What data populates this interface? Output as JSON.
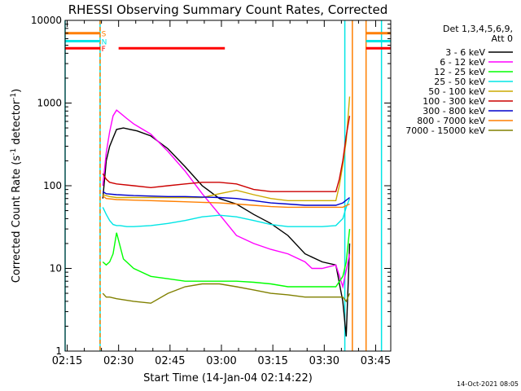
{
  "chart_data": {
    "type": "line",
    "title": "RHESSI Observing Summary Count Rates, Corrected",
    "xlabel": "Start Time (14-Jan-04 02:14:22)",
    "ylabel_main": "Corrected Count Rate (s",
    "ylabel_sup": "-1",
    "ylabel_rest": " detector",
    "ylabel_sup2": "-1",
    "ylabel_end": ")",
    "footer_timestamp": "14-Oct-2021 08:05",
    "legend_header": [
      "Det 1,3,4,5,6,9,",
      "Att 0"
    ],
    "x_unit": "minutes after 02:14:22",
    "xlim": [
      0,
      95
    ],
    "ylim": [
      1,
      10000
    ],
    "yscale": "log",
    "x_ticks": [
      {
        "label": "02:15",
        "x": 0.6
      },
      {
        "label": "02:30",
        "x": 15.6
      },
      {
        "label": "02:45",
        "x": 30.6
      },
      {
        "label": "03:00",
        "x": 45.6
      },
      {
        "label": "03:15",
        "x": 60.6
      },
      {
        "label": "03:30",
        "x": 75.6
      },
      {
        "label": "03:45",
        "x": 90.6
      }
    ],
    "y_ticks": [
      {
        "label": "1",
        "y": 1
      },
      {
        "label": "10",
        "y": 10
      },
      {
        "label": "100",
        "y": 100
      },
      {
        "label": "1000",
        "y": 1000
      },
      {
        "label": "10000",
        "y": 10000
      }
    ],
    "flags": [
      {
        "label": "S",
        "color": "#ff7f00",
        "y": 7000
      },
      {
        "label": "N",
        "color": "#00e5e5",
        "y": 5600
      },
      {
        "label": "F",
        "color": "#ff0000",
        "y": 4600
      }
    ],
    "flare_bar": {
      "x_start": 15.6,
      "x_end": 46.6,
      "y": 4600,
      "color": "#ff0000"
    },
    "vlines": [
      {
        "x": 10.2,
        "color": "#00e5e5",
        "style": "solid"
      },
      {
        "x": 10.2,
        "color": "#ff7f00",
        "style": "dash"
      },
      {
        "x": 0.0,
        "color": "#00e5e5",
        "style": "solid"
      },
      {
        "x": 81.6,
        "color": "#00e5e5",
        "style": "solid"
      },
      {
        "x": 83.8,
        "color": "#ff7f00",
        "style": "solid"
      },
      {
        "x": 87.8,
        "color": "#ff7f00",
        "style": "solid"
      },
      {
        "x": 92.3,
        "color": "#00e5e5",
        "style": "solid"
      }
    ],
    "series": [
      {
        "name": "3 - 6 keV",
        "color": "#000000",
        "x": [
          11,
          12,
          13,
          14,
          15,
          17,
          19,
          21,
          25,
          30,
          35,
          40,
          45,
          50,
          55,
          60,
          65,
          70,
          75,
          79,
          81,
          82,
          83
        ],
        "y": [
          70,
          200,
          300,
          380,
          480,
          500,
          480,
          460,
          400,
          280,
          170,
          100,
          70,
          60,
          45,
          35,
          25,
          15,
          12,
          11,
          4,
          1.5,
          20
        ]
      },
      {
        "name": "6 - 12 keV",
        "color": "#ff00ff",
        "x": [
          11,
          12,
          13,
          14,
          15,
          16,
          18,
          20,
          22,
          25,
          30,
          35,
          40,
          45,
          50,
          55,
          60,
          65,
          70,
          72,
          75,
          79,
          81,
          83
        ],
        "y": [
          100,
          250,
          450,
          700,
          820,
          760,
          650,
          560,
          500,
          420,
          260,
          150,
          80,
          45,
          25,
          20,
          17,
          15,
          12,
          10,
          10,
          11,
          6,
          15
        ]
      },
      {
        "name": "12 - 25 keV",
        "color": "#00ff00",
        "x": [
          11,
          12,
          13,
          14,
          15,
          17,
          20,
          25,
          30,
          35,
          40,
          45,
          50,
          55,
          60,
          65,
          70,
          75,
          79,
          81,
          82,
          83
        ],
        "y": [
          12,
          11,
          12,
          15,
          27,
          13,
          10,
          8,
          7.5,
          7,
          7,
          7,
          7,
          6.8,
          6.5,
          6,
          6,
          6,
          6,
          8,
          12,
          30
        ]
      },
      {
        "name": "25 - 50 keV",
        "color": "#00e5e5",
        "x": [
          11,
          12,
          13,
          14,
          15,
          16,
          18,
          20,
          25,
          30,
          35,
          40,
          45,
          50,
          55,
          60,
          65,
          70,
          75,
          79,
          81,
          82,
          83
        ],
        "y": [
          55,
          45,
          38,
          34,
          33,
          33,
          32,
          32,
          33,
          35,
          38,
          42,
          44,
          42,
          38,
          34,
          32,
          32,
          32,
          33,
          40,
          55,
          70
        ]
      },
      {
        "name": "50 - 100 keV",
        "color": "#ccaa00",
        "x": [
          11,
          13,
          15,
          20,
          25,
          30,
          35,
          40,
          45,
          50,
          55,
          60,
          65,
          70,
          75,
          79,
          80,
          81,
          82,
          83
        ],
        "y": [
          78,
          74,
          72,
          72,
          72,
          72,
          72,
          72,
          80,
          88,
          78,
          70,
          66,
          66,
          66,
          66,
          100,
          180,
          350,
          1200
        ]
      },
      {
        "name": "100 - 300 keV",
        "color": "#cc0000",
        "x": [
          11,
          12,
          13,
          15,
          20,
          25,
          30,
          35,
          40,
          45,
          50,
          55,
          60,
          65,
          70,
          75,
          79,
          80,
          81,
          82,
          83
        ],
        "y": [
          140,
          120,
          110,
          105,
          100,
          95,
          100,
          105,
          110,
          110,
          105,
          90,
          85,
          85,
          85,
          85,
          85,
          120,
          200,
          400,
          700
        ]
      },
      {
        "name": "300 - 800 keV",
        "color": "#0000cc",
        "x": [
          11,
          12,
          15,
          20,
          25,
          30,
          35,
          40,
          45,
          50,
          55,
          60,
          65,
          70,
          75,
          79,
          81,
          83
        ],
        "y": [
          85,
          80,
          78,
          76,
          75,
          74,
          74,
          73,
          72,
          70,
          66,
          62,
          60,
          58,
          58,
          58,
          62,
          72
        ]
      },
      {
        "name": "800 - 7000 keV",
        "color": "#ff7f00",
        "x": [
          11,
          12,
          15,
          20,
          25,
          30,
          35,
          40,
          45,
          50,
          55,
          60,
          65,
          70,
          75,
          79,
          81,
          83
        ],
        "y": [
          75,
          70,
          68,
          67,
          66,
          65,
          64,
          63,
          62,
          60,
          58,
          56,
          55,
          55,
          55,
          55,
          55,
          60
        ]
      },
      {
        "name": "7000 - 15000 keV",
        "color": "#808000",
        "x": [
          11,
          12,
          13,
          15,
          20,
          25,
          30,
          35,
          40,
          45,
          50,
          55,
          60,
          65,
          70,
          75,
          79,
          81,
          82,
          83
        ],
        "y": [
          5,
          4.5,
          4.5,
          4.3,
          4,
          3.8,
          5,
          6,
          6.5,
          6.5,
          6,
          5.5,
          5,
          4.8,
          4.5,
          4.5,
          4.5,
          4.5,
          4,
          5
        ]
      }
    ]
  }
}
